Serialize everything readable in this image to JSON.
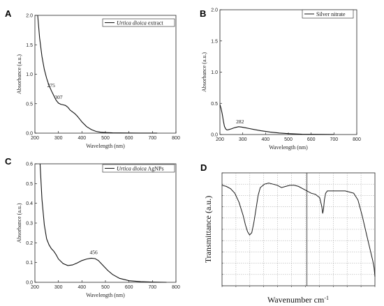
{
  "chart_data": [
    {
      "panel": "A",
      "type": "line",
      "xlabel": "Wavelength (nm)",
      "ylabel": "Absorbance (a.u.)",
      "xlim": [
        200,
        800
      ],
      "ylim": [
        0,
        2.0
      ],
      "xticks": [
        200,
        300,
        400,
        500,
        600,
        700,
        800
      ],
      "yticks": [
        0.0,
        0.5,
        1.0,
        1.5,
        2.0
      ],
      "legend": {
        "italic": "Urtica dioica",
        "rest": " extract",
        "placement": "top-right"
      },
      "series": [
        {
          "x": [
            212,
            220,
            230,
            240,
            250,
            260,
            270,
            280,
            290,
            300,
            310,
            320,
            330,
            340,
            350,
            360,
            370,
            380,
            390,
            400,
            420,
            440,
            460,
            480,
            500,
            530,
            560,
            600,
            650,
            700,
            720
          ],
          "y": [
            2.0,
            1.62,
            1.3,
            1.08,
            0.93,
            0.81,
            0.72,
            0.64,
            0.56,
            0.51,
            0.49,
            0.48,
            0.47,
            0.44,
            0.39,
            0.36,
            0.33,
            0.29,
            0.24,
            0.19,
            0.11,
            0.06,
            0.03,
            0.015,
            0.01,
            0.005,
            0.003,
            0.002,
            0.001,
            0.001,
            0.001
          ]
        }
      ],
      "annotations": [
        {
          "text": "275",
          "x": 275,
          "y": 0.72
        },
        {
          "text": "307",
          "x": 307,
          "y": 0.52
        }
      ]
    },
    {
      "panel": "B",
      "type": "line",
      "xlabel": "Wavelength (nm)",
      "ylabel": "Absorbance (a.u.)",
      "xlim": [
        200,
        800
      ],
      "ylim": [
        0,
        2.0
      ],
      "xticks": [
        200,
        300,
        400,
        500,
        600,
        700,
        800
      ],
      "yticks": [
        0.0,
        0.5,
        1.0,
        1.5,
        2.0
      ],
      "legend": {
        "italic": "",
        "rest": "Silver nitrate",
        "placement": "top-right"
      },
      "series": [
        {
          "x": [
            200,
            205,
            210,
            215,
            220,
            225,
            230,
            235,
            240,
            250,
            260,
            270,
            282,
            295,
            310,
            330,
            350,
            380,
            420,
            460,
            500,
            560,
            600,
            650,
            700
          ],
          "y": [
            0.48,
            0.42,
            0.33,
            0.22,
            0.13,
            0.09,
            0.075,
            0.075,
            0.08,
            0.09,
            0.105,
            0.115,
            0.125,
            0.12,
            0.11,
            0.095,
            0.08,
            0.06,
            0.04,
            0.025,
            0.015,
            0.005,
            0.003,
            0.002,
            0.001
          ]
        }
      ],
      "annotations": [
        {
          "text": "282",
          "x": 282,
          "y": 0.125
        }
      ]
    },
    {
      "panel": "C",
      "type": "line",
      "xlabel": "Wavelength (nm)",
      "ylabel": "Absorbance (a.u.)",
      "xlim": [
        200,
        800
      ],
      "ylim": [
        0,
        0.6
      ],
      "xticks": [
        200,
        300,
        400,
        500,
        600,
        700,
        800
      ],
      "yticks": [
        0.0,
        0.1,
        0.2,
        0.3,
        0.4,
        0.5,
        0.6
      ],
      "legend": {
        "italic": "Urtica dioica",
        "rest": " AgNPs",
        "placement": "top-right"
      },
      "series": [
        {
          "x": [
            222,
            230,
            240,
            250,
            260,
            270,
            280,
            290,
            300,
            320,
            340,
            360,
            380,
            400,
            420,
            440,
            456,
            470,
            490,
            510,
            530,
            560,
            600,
            650,
            700,
            760
          ],
          "y": [
            0.6,
            0.42,
            0.29,
            0.22,
            0.19,
            0.17,
            0.158,
            0.14,
            0.118,
            0.095,
            0.085,
            0.088,
            0.098,
            0.11,
            0.118,
            0.122,
            0.12,
            0.11,
            0.085,
            0.06,
            0.04,
            0.02,
            0.008,
            0.003,
            0.001,
            0.0
          ]
        }
      ],
      "annotations": [
        {
          "text": "456",
          "x": 456,
          "y": 0.125
        }
      ]
    },
    {
      "panel": "D",
      "type": "line",
      "xlabel": "Wavenumber cm-1",
      "ylabel": "Transmittance (a.u.)",
      "xlim": [
        4000,
        400
      ],
      "ylim": [
        0,
        100
      ],
      "series": [
        {
          "x": [
            4000,
            3900,
            3800,
            3700,
            3600,
            3500,
            3450,
            3400,
            3350,
            3300,
            3250,
            3200,
            3150,
            3100,
            3000,
            2900,
            2800,
            2700,
            2600,
            2500,
            2400,
            2300,
            2200,
            2100,
            2000,
            1900,
            1800,
            1700,
            1650,
            1630,
            1610,
            1590,
            1560,
            1520,
            1500,
            1450,
            1400,
            1300,
            1200,
            1100,
            1000,
            900,
            800,
            700,
            600,
            500,
            450,
            420,
            400
          ],
          "y": [
            89,
            88,
            86,
            82,
            74,
            62,
            54,
            48,
            45,
            47,
            56,
            68,
            80,
            87,
            90,
            91,
            90,
            89,
            87,
            88,
            89,
            89,
            88,
            86,
            84,
            82,
            81,
            78,
            70,
            64,
            68,
            76,
            82,
            84,
            84,
            84,
            84,
            84,
            84,
            84,
            83,
            82,
            76,
            62,
            46,
            30,
            22,
            16,
            8
          ]
        }
      ]
    }
  ],
  "labels": {
    "panel_a": "A",
    "panel_b": "B",
    "panel_c": "C",
    "panel_d": "D",
    "ftir_x": "Wavenumber cm",
    "ftir_x_sup": "-1",
    "ftir_y": "Transmittance (a.u.)"
  }
}
